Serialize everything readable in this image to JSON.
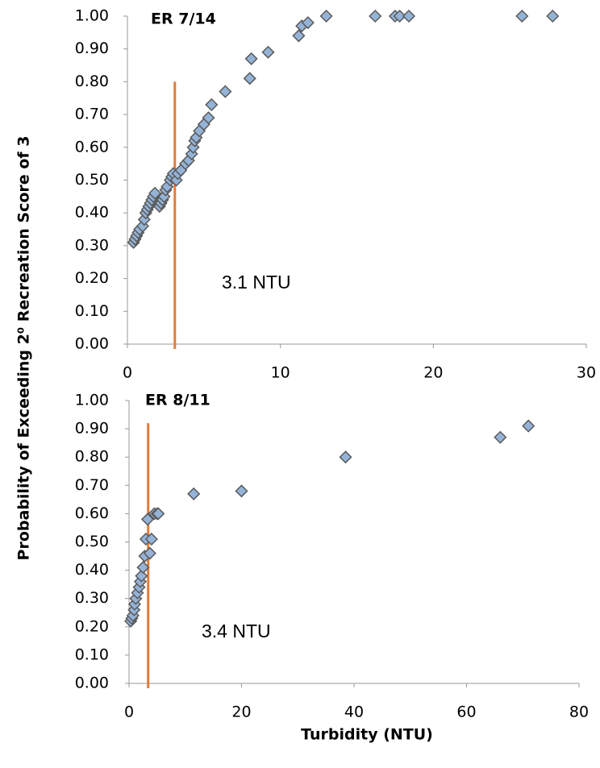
{
  "chart_data": [
    {
      "type": "scatter",
      "title": "ER 7/14",
      "ylabel": "Probability of Exceeding 2⁰ Recreation Score of 3",
      "x": [
        0.4,
        0.5,
        0.6,
        0.7,
        0.8,
        1.0,
        1.1,
        1.2,
        1.3,
        1.4,
        1.5,
        1.6,
        1.7,
        1.8,
        2.1,
        2.2,
        2.3,
        2.4,
        2.5,
        2.6,
        2.8,
        2.9,
        3.0,
        3.2,
        3.3,
        3.5,
        3.8,
        4.0,
        4.2,
        4.3,
        4.4,
        4.5,
        4.7,
        5.0,
        5.3,
        5.5,
        6.4,
        8.0,
        8.1,
        9.2,
        11.2,
        11.4,
        11.8,
        13.0,
        16.2,
        17.5,
        17.8,
        18.4,
        25.8,
        27.8
      ],
      "values": [
        0.31,
        0.32,
        0.33,
        0.34,
        0.35,
        0.36,
        0.38,
        0.4,
        0.41,
        0.42,
        0.43,
        0.44,
        0.45,
        0.46,
        0.42,
        0.43,
        0.44,
        0.45,
        0.47,
        0.48,
        0.5,
        0.51,
        0.52,
        0.5,
        0.52,
        0.53,
        0.55,
        0.56,
        0.58,
        0.6,
        0.62,
        0.63,
        0.65,
        0.67,
        0.69,
        0.73,
        0.77,
        0.81,
        0.87,
        0.89,
        0.94,
        0.97,
        0.98,
        1.0,
        1.0,
        1.0,
        1.0,
        1.0,
        1.0,
        1.0
      ],
      "marker_color": "#95b3d7",
      "xlim": [
        0,
        30
      ],
      "xticks": [
        0,
        10,
        20,
        30
      ],
      "ylim": [
        0,
        1
      ],
      "yticks": [
        {
          "value": 0,
          "label": "0.00"
        },
        {
          "value": 0.1,
          "label": "0.10"
        },
        {
          "value": 0.2,
          "label": "0.20"
        },
        {
          "value": 0.3,
          "label": "0.30"
        },
        {
          "value": 0.4,
          "label": "0.40"
        },
        {
          "value": 0.5,
          "label": "0.50"
        },
        {
          "value": 0.6,
          "label": "0.60"
        },
        {
          "value": 0.7,
          "label": "0.70"
        },
        {
          "value": 0.8,
          "label": "0.80"
        },
        {
          "value": 0.9,
          "label": "0.90"
        },
        {
          "value": 1,
          "label": "1.00"
        }
      ],
      "threshold": {
        "x": 3.1,
        "y_top": 0.8,
        "label": "3.1 NTU",
        "color": "#e07b39"
      }
    },
    {
      "type": "scatter",
      "title": "ER 8/11",
      "xlabel": "Turbidity (NTU)",
      "x": [
        0.3,
        0.5,
        0.7,
        0.9,
        1.0,
        1.2,
        1.5,
        1.8,
        2.0,
        2.2,
        2.5,
        2.8,
        3.0,
        3.3,
        3.7,
        4.0,
        4.5,
        5.0,
        5.2,
        11.5,
        20,
        38.5,
        66,
        71
      ],
      "values": [
        0.22,
        0.23,
        0.24,
        0.26,
        0.28,
        0.3,
        0.32,
        0.34,
        0.36,
        0.38,
        0.41,
        0.45,
        0.51,
        0.58,
        0.46,
        0.51,
        0.6,
        0.6,
        0.6,
        0.67,
        0.68,
        0.8,
        0.87,
        0.91
      ],
      "marker_color": "#95b3d7",
      "xlim": [
        0,
        80
      ],
      "xticks": [
        0,
        20,
        40,
        60,
        80
      ],
      "ylim": [
        0,
        1
      ],
      "yticks": [
        {
          "value": 0,
          "label": "0.00"
        },
        {
          "value": 0.1,
          "label": "0.10"
        },
        {
          "value": 0.2,
          "label": "0.20"
        },
        {
          "value": 0.3,
          "label": "0.30"
        },
        {
          "value": 0.4,
          "label": "0.40"
        },
        {
          "value": 0.5,
          "label": "0.50"
        },
        {
          "value": 0.6,
          "label": "0.60"
        },
        {
          "value": 0.7,
          "label": "0.70"
        },
        {
          "value": 0.8,
          "label": "0.80"
        },
        {
          "value": 0.9,
          "label": "0.90"
        },
        {
          "value": 1,
          "label": "1.00"
        }
      ],
      "threshold": {
        "x": 3.4,
        "y_top": 0.92,
        "label": "3.4 NTU",
        "color": "#e07b39"
      }
    }
  ]
}
